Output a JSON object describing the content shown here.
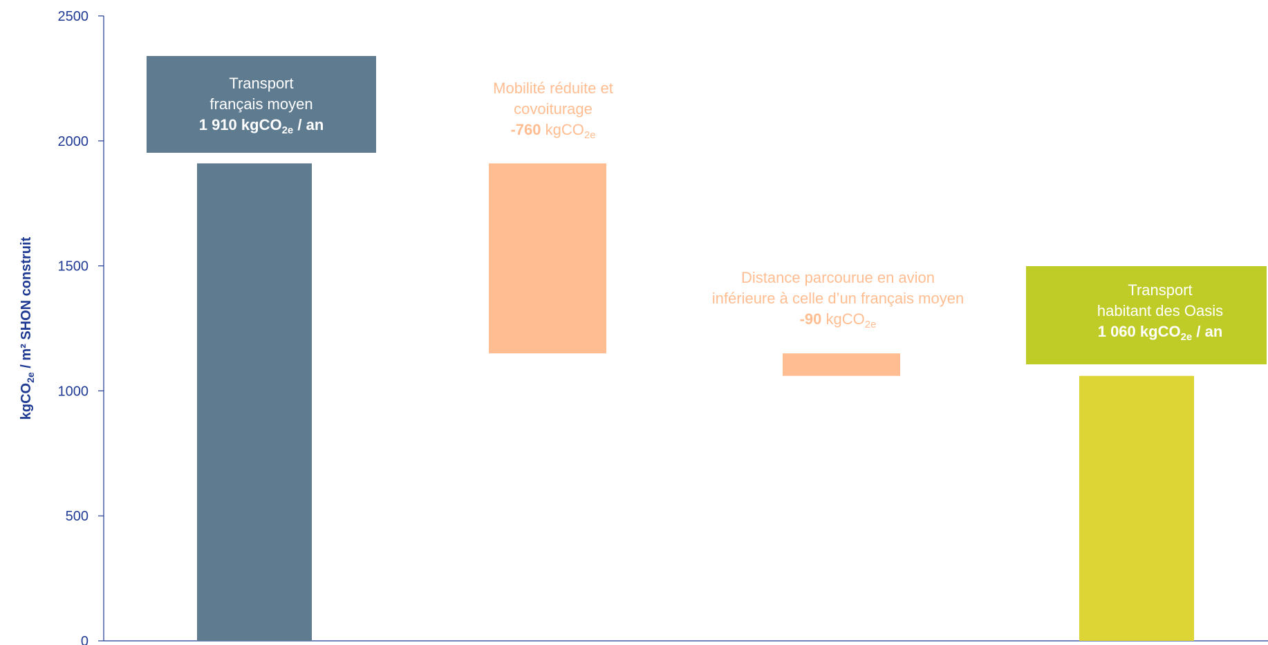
{
  "chart_data": {
    "type": "bar",
    "subtype": "waterfall",
    "ylabel": {
      "main": "kgCO",
      "sub": "2e",
      "rest": " / m² SHON construit"
    },
    "ylim": [
      0,
      2500
    ],
    "yticks": [
      0,
      500,
      1000,
      1500,
      2000,
      2500
    ],
    "grid": false,
    "legend": "none",
    "bars": [
      {
        "id": "base",
        "kind": "total",
        "start": 0,
        "end": 1910,
        "color": "#5f7b90",
        "label_box": "#5f7b90",
        "text_color": "#ffffff",
        "label_lines": [
          {
            "text": "Transport",
            "bold": false
          },
          {
            "text": "français moyen",
            "bold": false
          }
        ],
        "value_line": {
          "value": "1 910",
          "unit": "kgCO",
          "sub": "2e",
          "suffix": " / an",
          "bold": true
        }
      },
      {
        "id": "mobility",
        "kind": "delta",
        "start": 1910,
        "end": 1150,
        "color": "#ffbd91",
        "label_box": null,
        "text_color": "#ffbd91",
        "label_lines": [
          {
            "text": "Mobilité réduite et",
            "bold": false
          },
          {
            "text": "covoiturage",
            "bold": false
          }
        ],
        "value_line": {
          "value": "-760",
          "unit": " kgCO",
          "sub": "2e",
          "suffix": "",
          "bold": false
        }
      },
      {
        "id": "plane",
        "kind": "delta",
        "start": 1150,
        "end": 1060,
        "color": "#ffbd91",
        "label_box": null,
        "text_color": "#ffbd91",
        "label_lines": [
          {
            "text": "Distance parcourue en avion",
            "bold": false
          },
          {
            "text": "inférieure à celle d’un français moyen",
            "bold": false
          }
        ],
        "value_line": {
          "value": "-90",
          "unit": " kgCO",
          "sub": "2e",
          "suffix": "",
          "bold": false
        }
      },
      {
        "id": "oasis",
        "kind": "total",
        "start": 0,
        "end": 1060,
        "color": "#ddd536",
        "label_box": "#bfcc27",
        "text_color": "#ffffff",
        "label_lines": [
          {
            "text": "Transport",
            "bold": false
          },
          {
            "text": "habitant des Oasis",
            "bold": false
          }
        ],
        "value_line": {
          "value": "1 060",
          "unit": "kgCO",
          "sub": "2e",
          "suffix": " / an",
          "bold": true
        }
      }
    ]
  },
  "colors": {
    "axis": "#1f3a93"
  }
}
